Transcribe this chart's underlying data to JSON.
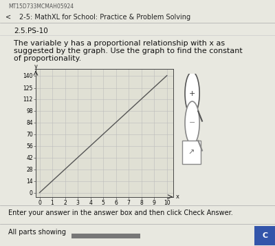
{
  "header_line1": "MT15D733MCMAH05924",
  "header_line2": "2-5: MathXL for School: Practice & Problem Solving",
  "problem_id": "2.5.PS-10",
  "problem_text_line1": "The variable y has a proportional relationship with x as",
  "problem_text_line2": "suggested by the graph. Use the graph to find the constant",
  "problem_text_line3": "of proportionality.",
  "footer_text": "Enter your answer in the answer box and then click Check Answer.",
  "footer_text2": "All parts showing",
  "xlabel": "x",
  "ylabel": "y",
  "x_ticks": [
    0,
    1,
    2,
    3,
    4,
    5,
    6,
    7,
    8,
    9,
    10
  ],
  "y_ticks": [
    0,
    14,
    28,
    42,
    56,
    70,
    84,
    98,
    112,
    125,
    140
  ],
  "xlim": [
    -0.3,
    10.5
  ],
  "ylim": [
    -5,
    148
  ],
  "line_x": [
    0,
    10
  ],
  "line_y": [
    0,
    140
  ],
  "line_color": "#555555",
  "grid_color": "#bbbbbb",
  "bg_color": "#e8e8e0",
  "plot_bg": "#e0e0d4",
  "text_color": "#111111",
  "header_color": "#222222",
  "button_color": "#3355aa",
  "progress_color": "#777777",
  "icon_color": "#555555",
  "separator_color": "#aaaaaa",
  "white": "#ffffff"
}
